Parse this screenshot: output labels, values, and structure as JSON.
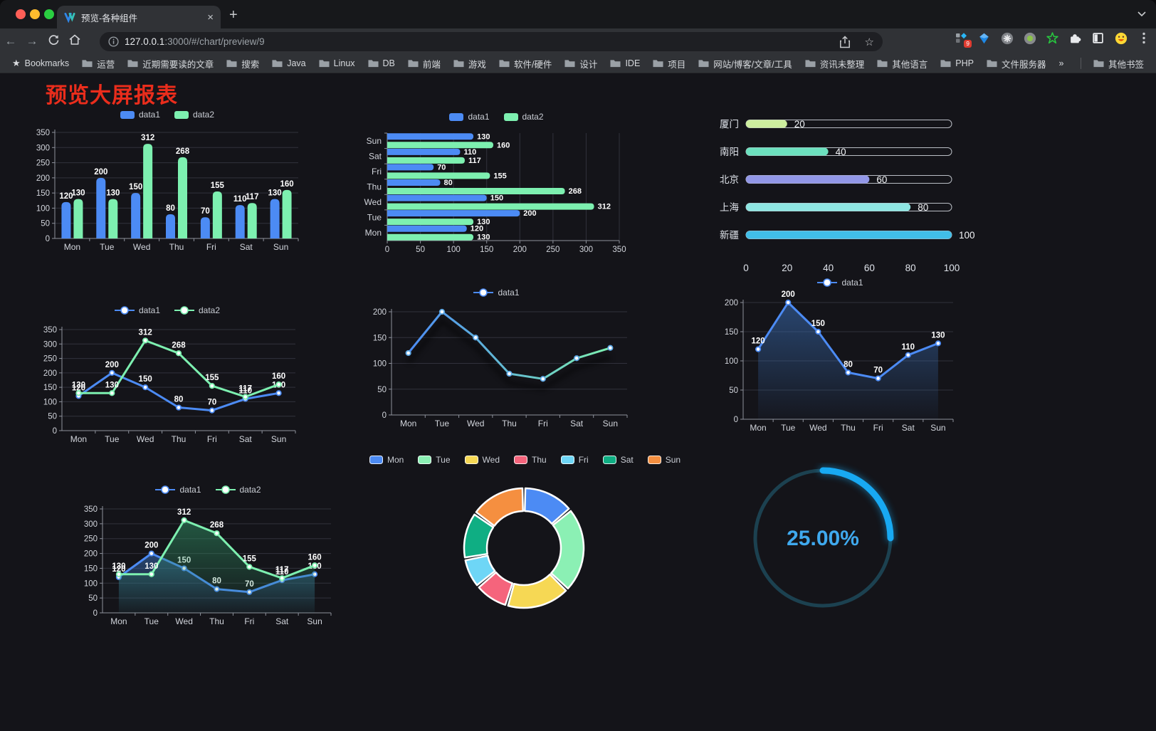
{
  "theme": {
    "series1": "#4C8BF4",
    "series2": "#7DF0B0",
    "page_bg": "#141419",
    "grid": "#31323C",
    "axis": "#8E929C",
    "axis_label": "#D2D5DC",
    "value_label": "#FFFFFF",
    "title_color": "#EA2D1C"
  },
  "browser": {
    "tab_title": "预览-各种组件",
    "url": {
      "host": "127.0.0.1",
      "rest": ":3000/#/chart/preview/9"
    },
    "extension_badge": "9",
    "bookmarks_bar": {
      "label": "Bookmarks",
      "folders": [
        "运营",
        "近期需要读的文章",
        "搜索",
        "Java",
        "Linux",
        "DB",
        "前端",
        "游戏",
        "软件/硬件",
        "设计",
        "IDE",
        "项目",
        "网站/博客/文章/工具",
        "资讯未整理",
        "其他语言",
        "PHP",
        "文件服务器"
      ],
      "overflow": "»",
      "other": "其他书签"
    }
  },
  "page": {
    "title": "预览大屏报表"
  },
  "chart_data": [
    {
      "id": "grouped-bar",
      "type": "bar",
      "orientation": "vertical",
      "categories": [
        "Mon",
        "Tue",
        "Wed",
        "Thu",
        "Fri",
        "Sat",
        "Sun"
      ],
      "series": [
        {
          "name": "data1",
          "color": "#4C8BF4",
          "values": [
            120,
            200,
            150,
            80,
            70,
            110,
            130
          ]
        },
        {
          "name": "data2",
          "color": "#7DF0B0",
          "values": [
            130,
            130,
            312,
            268,
            155,
            117,
            160
          ]
        }
      ],
      "ylim": [
        0,
        350
      ],
      "ystep": 50,
      "value_labels": true,
      "legend_position": "top"
    },
    {
      "id": "grouped-hbar",
      "type": "bar",
      "orientation": "horizontal",
      "categories": [
        "Mon",
        "Tue",
        "Wed",
        "Thu",
        "Fri",
        "Sat",
        "Sun"
      ],
      "series": [
        {
          "name": "data1",
          "color": "#4C8BF4",
          "values": [
            120,
            200,
            150,
            80,
            70,
            110,
            130
          ]
        },
        {
          "name": "data2",
          "color": "#7DF0B0",
          "values": [
            130,
            130,
            312,
            268,
            155,
            117,
            160
          ]
        }
      ],
      "xlim": [
        0,
        350
      ],
      "xstep": 50,
      "value_labels": true,
      "legend_position": "top"
    },
    {
      "id": "capsule-bar",
      "type": "bar",
      "orientation": "horizontal",
      "categories": [
        "厦门",
        "南阳",
        "北京",
        "上海",
        "新疆"
      ],
      "values": [
        20,
        40,
        60,
        80,
        100
      ],
      "colors": [
        "#CDEE9E",
        "#6CE0BE",
        "#9297E7",
        "#8EE6E2",
        "#41BEE8"
      ],
      "xlim": [
        0,
        100
      ],
      "xstep": 20,
      "value_labels": true
    },
    {
      "id": "two-line",
      "type": "line",
      "categories": [
        "Mon",
        "Tue",
        "Wed",
        "Thu",
        "Fri",
        "Sat",
        "Sun"
      ],
      "series": [
        {
          "name": "data1",
          "color": "#4C8BF4",
          "values": [
            120,
            200,
            150,
            80,
            70,
            110,
            130
          ]
        },
        {
          "name": "data2",
          "color": "#7DF0B0",
          "values": [
            130,
            130,
            312,
            268,
            155,
            117,
            160
          ]
        }
      ],
      "ylim": [
        0,
        350
      ],
      "ystep": 50,
      "value_labels": true,
      "legend_position": "top"
    },
    {
      "id": "gradient-line",
      "type": "line",
      "categories": [
        "Mon",
        "Tue",
        "Wed",
        "Thu",
        "Fri",
        "Sat",
        "Sun"
      ],
      "series": [
        {
          "name": "data1",
          "gradient": [
            "#4C8BF4",
            "#7DF0B0"
          ],
          "color": "#4C8BF4",
          "values": [
            120,
            200,
            150,
            80,
            70,
            110,
            130
          ]
        }
      ],
      "ylim": [
        0,
        200
      ],
      "ystep": 50,
      "value_labels": false,
      "legend_position": "top"
    },
    {
      "id": "single-area",
      "type": "area",
      "categories": [
        "Mon",
        "Tue",
        "Wed",
        "Thu",
        "Fri",
        "Sat",
        "Sun"
      ],
      "series": [
        {
          "name": "data1",
          "color": "#4C8BF4",
          "area_color": "#3A6FB8",
          "values": [
            120,
            200,
            150,
            80,
            70,
            110,
            130
          ]
        }
      ],
      "ylim": [
        0,
        200
      ],
      "ystep": 50,
      "value_labels": true,
      "legend_position": "top"
    },
    {
      "id": "two-area",
      "type": "area",
      "categories": [
        "Mon",
        "Tue",
        "Wed",
        "Thu",
        "Fri",
        "Sat",
        "Sun"
      ],
      "series": [
        {
          "name": "data1",
          "color": "#4C8BF4",
          "area_color": "#3A6FB8",
          "values": [
            120,
            200,
            150,
            80,
            70,
            110,
            130
          ]
        },
        {
          "name": "data2",
          "color": "#7DF0B0",
          "area_color": "#2F8F63",
          "values": [
            130,
            130,
            312,
            268,
            155,
            117,
            160
          ]
        }
      ],
      "ylim": [
        0,
        350
      ],
      "ystep": 50,
      "value_labels": true,
      "legend_position": "top"
    },
    {
      "id": "donut",
      "type": "pie",
      "inner_radius_ratio": 0.62,
      "categories": [
        "Mon",
        "Tue",
        "Wed",
        "Thu",
        "Fri",
        "Sat",
        "Sun"
      ],
      "values": [
        120,
        200,
        150,
        80,
        70,
        110,
        130
      ],
      "colors": [
        "#4C8BF4",
        "#8BF0B4",
        "#F6D854",
        "#F5647C",
        "#6ED6F6",
        "#0FAE83",
        "#F58F40"
      ],
      "legend_position": "top"
    },
    {
      "id": "ring-gauge",
      "type": "gauge",
      "value": 25,
      "label": "25.00%",
      "progress_color": "#18A9F2",
      "track_color": "#1C4150",
      "text_color": "#3FA9EE"
    }
  ]
}
